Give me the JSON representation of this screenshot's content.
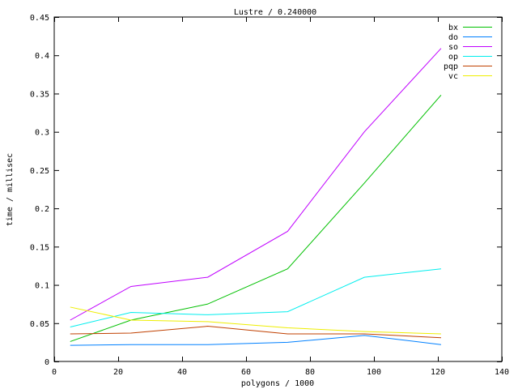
{
  "chart_data": {
    "type": "line",
    "title": "Lustre / 0.240000",
    "xlabel": "polygons / 1000",
    "ylabel": "time / millisec",
    "xlim": [
      0,
      140
    ],
    "ylim": [
      0,
      0.45
    ],
    "xticks": [
      0,
      20,
      40,
      60,
      80,
      100,
      120,
      140
    ],
    "yticks": [
      0,
      0.05,
      0.1,
      0.15,
      0.2,
      0.25,
      0.3,
      0.35,
      0.4,
      0.45
    ],
    "ytick_labels": [
      "0",
      "0.05",
      "0.1",
      "0.15",
      "0.2",
      "0.25",
      "0.3",
      "0.35",
      "0.4",
      "0.45"
    ],
    "grid": false,
    "legend_position": "top-right",
    "x": [
      5,
      24,
      48,
      73,
      97,
      121
    ],
    "series": [
      {
        "name": "bx",
        "color": "#00c000",
        "values": [
          0.026,
          0.054,
          0.075,
          0.121,
          0.233,
          0.348
        ]
      },
      {
        "name": "do",
        "color": "#0080ff",
        "values": [
          0.021,
          0.022,
          0.022,
          0.025,
          0.034,
          0.022
        ]
      },
      {
        "name": "so",
        "color": "#c000ff",
        "values": [
          0.054,
          0.098,
          0.11,
          0.17,
          0.3,
          0.409
        ]
      },
      {
        "name": "op",
        "color": "#00eeee",
        "values": [
          0.045,
          0.064,
          0.061,
          0.065,
          0.11,
          0.121
        ]
      },
      {
        "name": "pqp",
        "color": "#c04000",
        "values": [
          0.036,
          0.037,
          0.046,
          0.036,
          0.036,
          0.031
        ]
      },
      {
        "name": "vc",
        "color": "#eeee00",
        "values": [
          0.071,
          0.054,
          0.052,
          0.044,
          0.039,
          0.036
        ]
      }
    ]
  }
}
